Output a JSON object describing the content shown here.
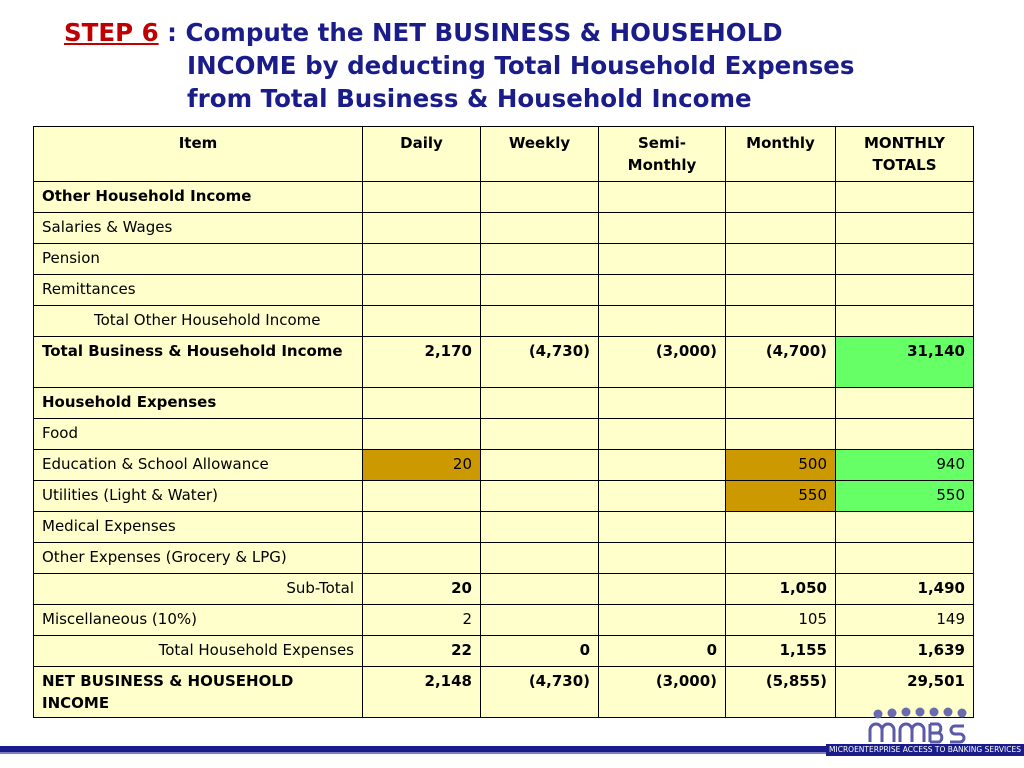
{
  "title": {
    "step": "STEP 6",
    "line1": " : Compute the NET BUSINESS & HOUSEHOLD",
    "line2": "INCOME by deducting Total Household Expenses",
    "line3": "from Total Business & Household Income"
  },
  "table": {
    "headers": [
      "Item",
      "Daily",
      "Weekly",
      "Semi-Monthly",
      "Monthly",
      "MONTHLY TOTALS"
    ],
    "rows": [
      {
        "item": "Other Household Income",
        "daily": "",
        "weekly": "",
        "semi": "",
        "monthly": "",
        "total": ""
      },
      {
        "item": "Salaries & Wages",
        "daily": "",
        "weekly": "",
        "semi": "",
        "monthly": "",
        "total": ""
      },
      {
        "item": "Pension",
        "daily": "",
        "weekly": "",
        "semi": "",
        "monthly": "",
        "total": ""
      },
      {
        "item": "Remittances",
        "daily": "",
        "weekly": "",
        "semi": "",
        "monthly": "",
        "total": ""
      },
      {
        "item": "Total Other Household Income",
        "daily": "",
        "weekly": "",
        "semi": "",
        "monthly": "",
        "total": ""
      },
      {
        "item": "Total Business & Household Income",
        "daily": "2,170",
        "weekly": "(4,730)",
        "semi": "(3,000)",
        "monthly": "(4,700)",
        "total": "31,140"
      },
      {
        "item": "Household Expenses",
        "daily": "",
        "weekly": "",
        "semi": "",
        "monthly": "",
        "total": ""
      },
      {
        "item": "Food",
        "daily": "",
        "weekly": "",
        "semi": "",
        "monthly": "",
        "total": ""
      },
      {
        "item": "Education & School Allowance",
        "daily": "20",
        "weekly": "",
        "semi": "",
        "monthly": "500",
        "total": "940"
      },
      {
        "item": "Utilities (Light & Water)",
        "daily": "",
        "weekly": "",
        "semi": "",
        "monthly": "550",
        "total": "550"
      },
      {
        "item": "Medical Expenses",
        "daily": "",
        "weekly": "",
        "semi": "",
        "monthly": "",
        "total": ""
      },
      {
        "item": "Other Expenses (Grocery & LPG)",
        "daily": "",
        "weekly": "",
        "semi": "",
        "monthly": "",
        "total": ""
      },
      {
        "item": "Sub-Total",
        "daily": "20",
        "weekly": "",
        "semi": "",
        "monthly": "1,050",
        "total": "1,490"
      },
      {
        "item": "Miscellaneous (10%)",
        "daily": "2",
        "weekly": "",
        "semi": "",
        "monthly": "105",
        "total": "149"
      },
      {
        "item": "Total Household Expenses",
        "daily": "22",
        "weekly": "0",
        "semi": "0",
        "monthly": "1,155",
        "total": "1,639"
      },
      {
        "item": "NET BUSINESS & HOUSEHOLD INCOME",
        "daily": "2,148",
        "weekly": "(4,730)",
        "semi": "(3,000)",
        "monthly": "(5,855)",
        "total": "29,501"
      }
    ]
  },
  "logo": {
    "wordmark": "MABS",
    "tagline": "MICROENTERPRISE ACCESS TO BANKING SERVICES"
  },
  "colors": {
    "title": "#1a1c8a",
    "step": "#c00000",
    "table_bg": "#ffffcc",
    "highlight_green": "#66ff66",
    "highlight_gold": "#cc9900"
  }
}
